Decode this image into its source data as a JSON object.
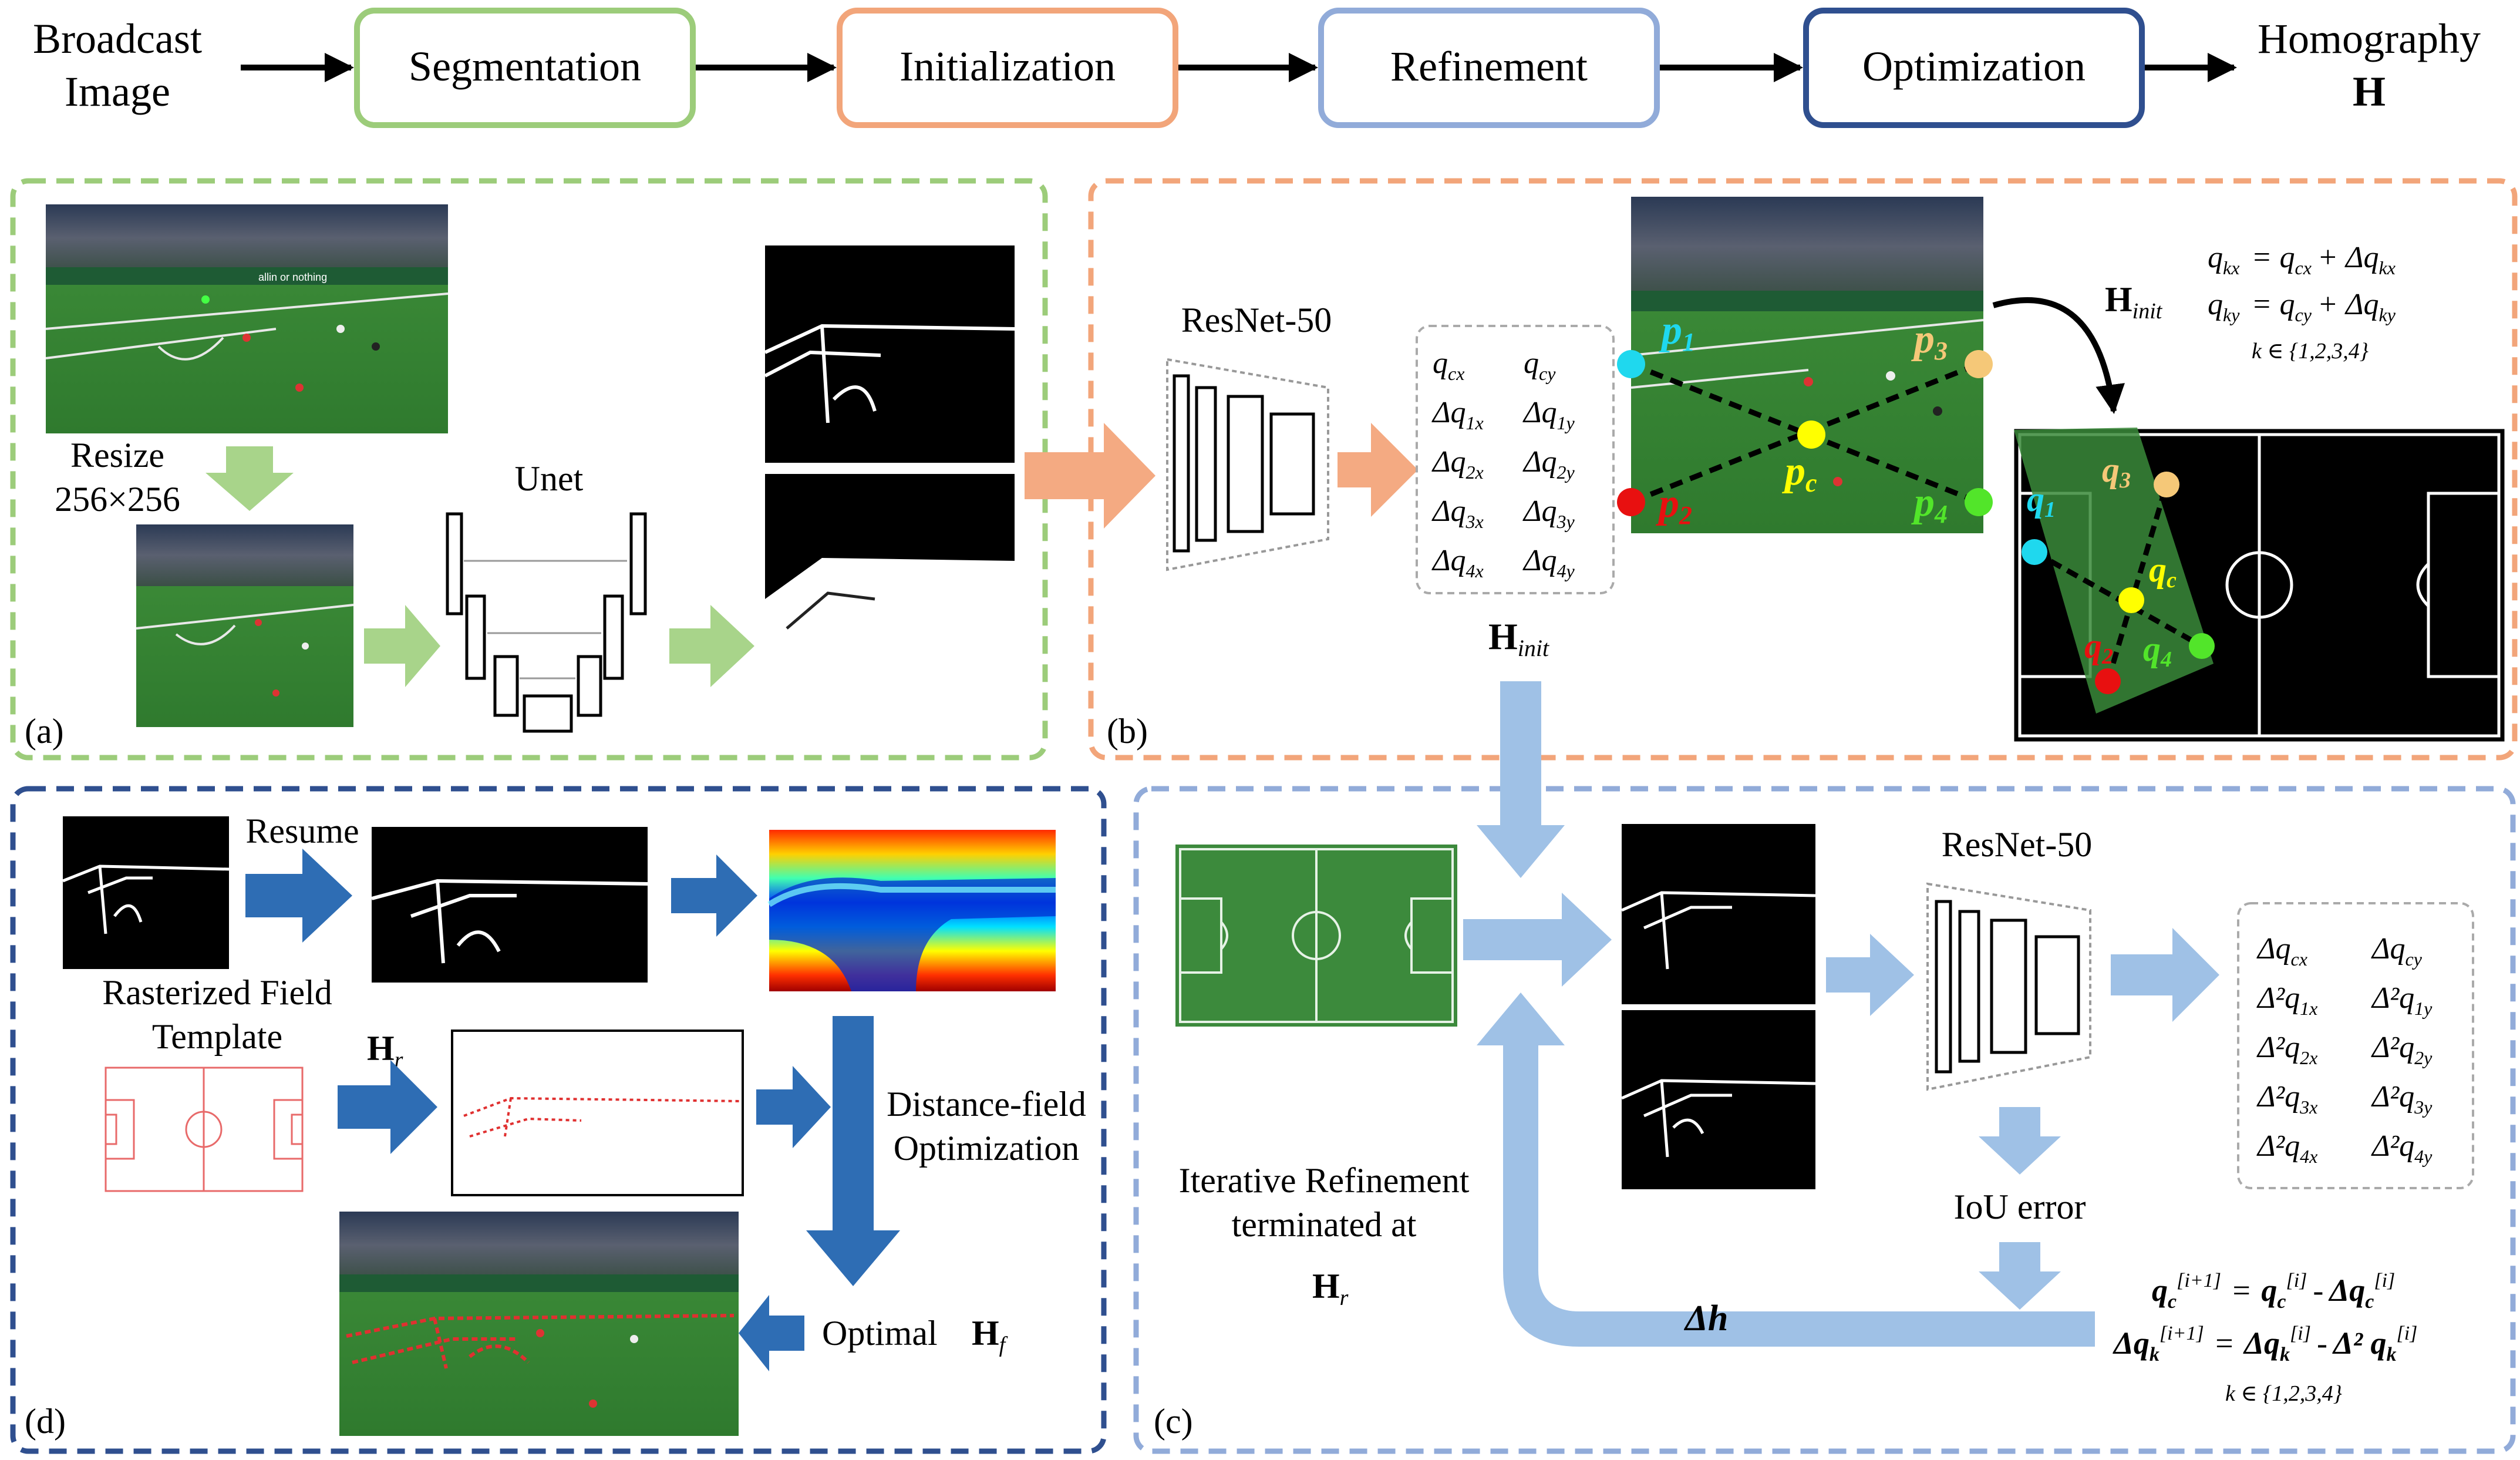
{
  "colors": {
    "green_stage": "#9ccc7a",
    "orange_stage": "#f2a57a",
    "lightblue_stage": "#91abd9",
    "darkblue_stage": "#2f4f8f",
    "orange_arrow": "#f4aa82",
    "green_arrow": "#a8d48a",
    "lightblue_arrow": "#9fc1e6",
    "darkblue_arrow": "#2e6db4",
    "pitch_green": "#3c8a3c",
    "template_red": "#e86a6a"
  },
  "pipeline": {
    "input_line1": "Broadcast",
    "input_line2": "Image",
    "stage1": "Segmentation",
    "stage2": "Initialization",
    "stage3": "Refinement",
    "stage4": "Optimization",
    "output_line1": "Homography",
    "output_line2": "H"
  },
  "panel_a": {
    "label": "(a)",
    "resize_line1": "Resize",
    "resize_line2": "256×256",
    "unet": "Unet",
    "banner1": "allin or nothing"
  },
  "panel_b": {
    "label": "(b)",
    "resnet": "ResNet-50",
    "hinit_main": "H",
    "hinit_sub": "init",
    "params": [
      [
        "q",
        "cx",
        "q",
        "cy"
      ],
      [
        "Δq",
        "1x",
        "Δq",
        "1y"
      ],
      [
        "Δq",
        "2x",
        "Δq",
        "2y"
      ],
      [
        "Δq",
        "3x",
        "Δq",
        "3y"
      ],
      [
        "Δq",
        "4x",
        "Δq",
        "4y"
      ]
    ],
    "eq1_lhs": "q",
    "eq1_lhs_sub": "kx",
    "eq1_rhs": "= q",
    "eq1_rhs_sub": "cx",
    "eq1_plus": "+ Δq",
    "eq1_plus_sub": "kx",
    "eq2_lhs": "q",
    "eq2_lhs_sub": "ky",
    "eq2_rhs": "= q",
    "eq2_rhs_sub": "cy",
    "eq2_plus": "+ Δq",
    "eq2_plus_sub": "ky",
    "k_range": "k ∈ {1,2,3,4}",
    "p1": "p",
    "p1_sub": "1",
    "p2": "p",
    "p2_sub": "2",
    "p3": "p",
    "p3_sub": "3",
    "p4": "p",
    "p4_sub": "4",
    "pc": "p",
    "pc_sub": "c",
    "q1": "q",
    "q1_sub": "1",
    "q2": "q",
    "q2_sub": "2",
    "q3": "q",
    "q3_sub": "3",
    "q4": "q",
    "q4_sub": "4",
    "qc": "q",
    "qc_sub": "c"
  },
  "panel_c": {
    "label": "(c)",
    "resnet": "ResNet-50",
    "iou": "IoU error",
    "iter_line1": "Iterative Refinement",
    "iter_line2": "terminated at",
    "hr_main": "H",
    "hr_sub": "r",
    "delta_h": "Δh",
    "params": [
      [
        "Δq",
        "cx",
        "Δq",
        "cy"
      ],
      [
        "Δ²q",
        "1x",
        "Δ²q",
        "1y"
      ],
      [
        "Δ²q",
        "2x",
        "Δ²q",
        "2y"
      ],
      [
        "Δ²q",
        "3x",
        "Δ²q",
        "3y"
      ],
      [
        "Δ²q",
        "4x",
        "Δ²q",
        "4y"
      ]
    ],
    "upd1": "q_c^[i+1] = q_c^[i] - Δq_c^[i]",
    "upd2": "Δq_k^[i+1] = Δq_k^[i] - Δ² q_k^[i]",
    "k_range": "k ∈ {1,2,3,4}"
  },
  "panel_d": {
    "label": "(d)",
    "resume": "Resume",
    "template_line1": "Rasterized Field",
    "template_line2": "Template",
    "hr_main": "H",
    "hr_sub": "r",
    "dist_line1": "Distance-field",
    "dist_line2": "Optimization",
    "optimal": "Optimal",
    "hf_main": "H",
    "hf_sub": "f"
  }
}
